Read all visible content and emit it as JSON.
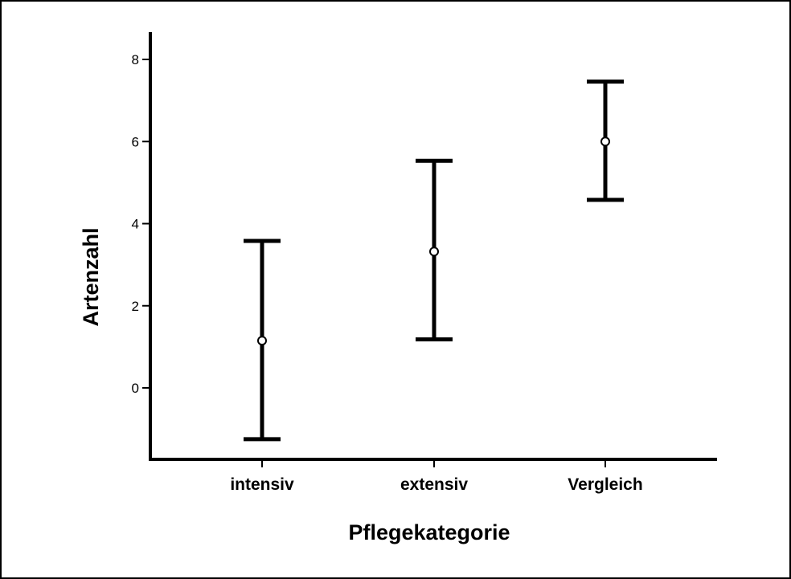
{
  "chart_data": {
    "type": "errorbar",
    "xlabel": "Pflegekategorie",
    "ylabel": "Artenzahl",
    "categories": [
      "intensiv",
      "extensiv",
      "Vergleich"
    ],
    "series": [
      {
        "mean": [
          1.15,
          3.32,
          6.0
        ],
        "lower": [
          -1.25,
          1.18,
          4.58
        ],
        "upper": [
          3.58,
          5.53,
          7.46
        ]
      }
    ],
    "yticks": [
      "0",
      "2",
      "4",
      "6",
      "8"
    ],
    "ylim": [
      -1.75,
      8.7
    ],
    "grid": false,
    "legend": "none"
  }
}
